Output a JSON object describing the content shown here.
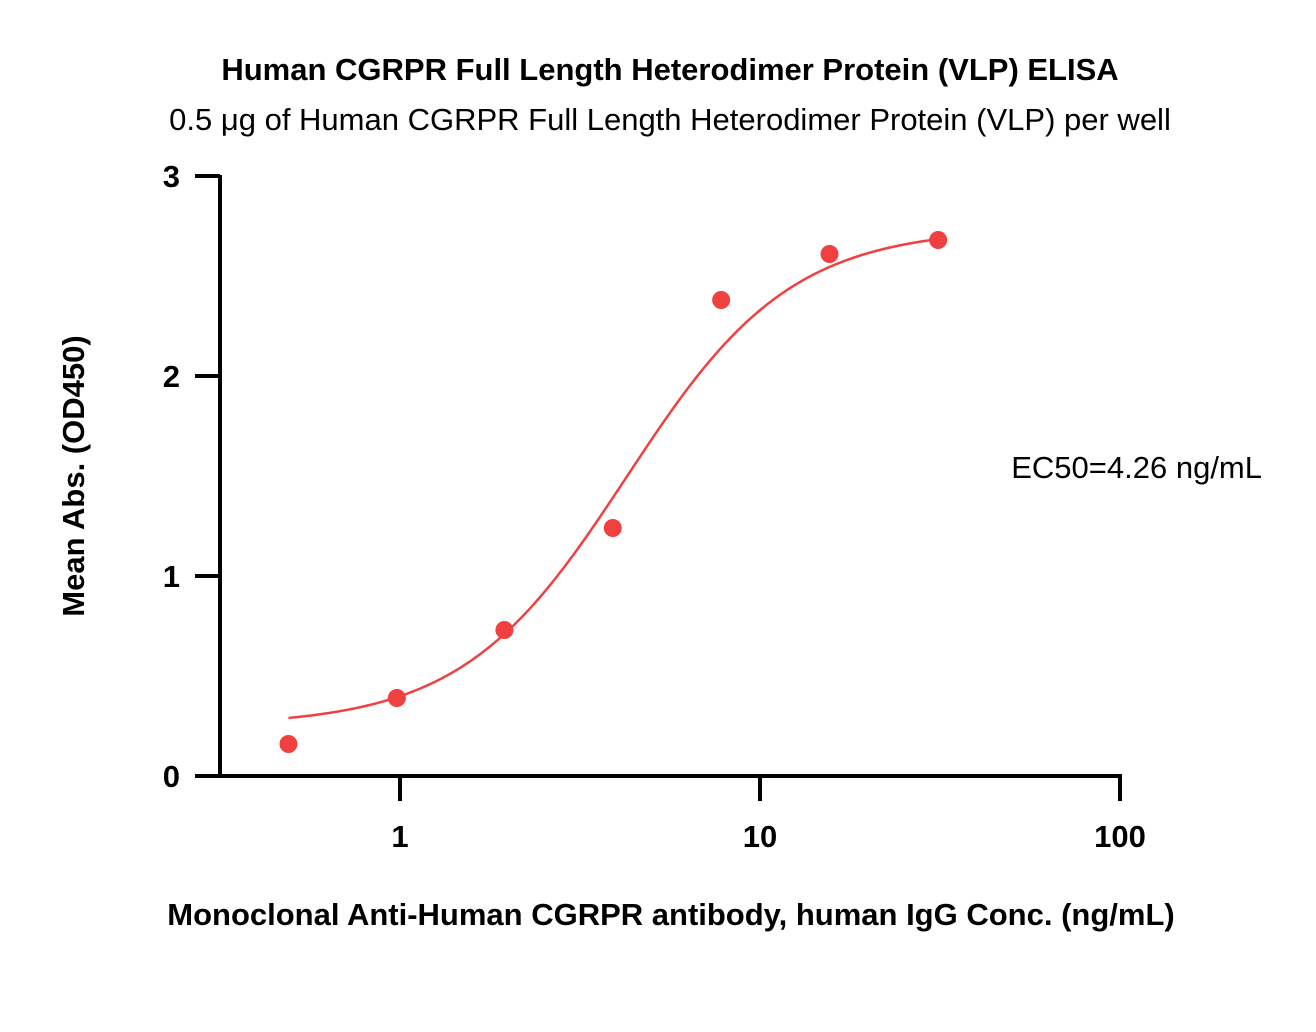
{
  "chart_data": {
    "type": "scatter",
    "title": "Human CGRPR Full Length Heterodimer Protein (VLP) ELISA",
    "subtitle": "0.5 μg of Human CGRPR Full Length Heterodimer Protein (VLP) per well",
    "xlabel": "Monoclonal Anti-Human CGRPR antibody, human IgG Conc. (ng/mL)",
    "ylabel": "Mean Abs. (OD450)",
    "x_scale": "log",
    "xlim": [
      0.2,
      100
    ],
    "ylim": [
      0,
      3
    ],
    "x_ticks": [
      1,
      10,
      100
    ],
    "x_tick_labels": [
      "1",
      "10",
      "100"
    ],
    "y_ticks": [
      0,
      1,
      2,
      3
    ],
    "y_tick_labels": [
      "0",
      "1",
      "2",
      "3"
    ],
    "grid": false,
    "color": "#f04040",
    "series": [
      {
        "x": [
          0.49,
          0.98,
          1.95,
          3.9,
          7.8,
          15.6,
          31.25
        ],
        "y": [
          0.16,
          0.39,
          0.73,
          1.24,
          2.38,
          2.61,
          2.68
        ]
      }
    ],
    "fit": {
      "model": "4PL",
      "bottom": 0.25,
      "top": 2.74,
      "ec50": 4.26,
      "hill": 1.9
    },
    "annotation": "EC50=4.26 ng/mL"
  }
}
